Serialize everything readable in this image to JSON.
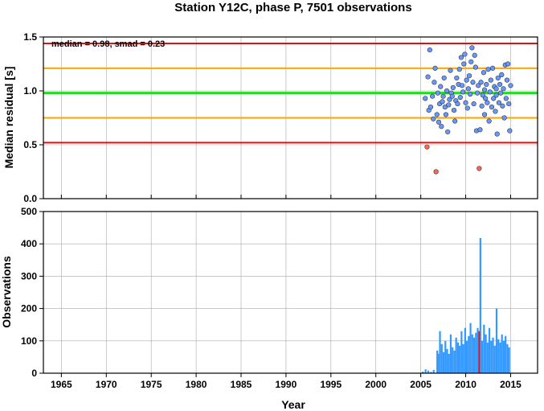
{
  "chart_data": [
    {
      "type": "scatter",
      "title": "Station Y12C, phase P, 7501 observations",
      "ylabel": "Median residual [s]",
      "annotation": "median = 0.98, smad = 0.23",
      "xlim": [
        1963,
        2018
      ],
      "ylim": [
        0.0,
        1.5
      ],
      "yticks": [
        "0.0",
        "0.5",
        "1.0",
        "1.5"
      ],
      "grid": true,
      "reference_lines": [
        {
          "name": "median",
          "value": 0.98,
          "color": "#22dd22"
        },
        {
          "name": "median - 1 smad",
          "value": 0.75,
          "color": "#ffa500"
        },
        {
          "name": "median + 1 smad",
          "value": 1.21,
          "color": "#ffa500"
        },
        {
          "name": "median - 2 smad",
          "value": 0.52,
          "color": "#dd1111"
        },
        {
          "name": "median + 2 smad",
          "value": 1.44,
          "color": "#dd1111"
        }
      ],
      "point_color_inlier": "#6699ff",
      "point_color_outlier": "#ff6655",
      "points": [
        [
          2005.5,
          0.93
        ],
        [
          2005.7,
          0.48
        ],
        [
          2005.8,
          1.13
        ],
        [
          2005.9,
          0.82
        ],
        [
          2006.0,
          1.38
        ],
        [
          2006.1,
          0.85
        ],
        [
          2006.3,
          0.95
        ],
        [
          2006.4,
          0.74
        ],
        [
          2006.5,
          1.08
        ],
        [
          2006.6,
          1.21
        ],
        [
          2006.7,
          0.25
        ],
        [
          2006.8,
          0.78
        ],
        [
          2006.9,
          0.98
        ],
        [
          2007.0,
          0.71
        ],
        [
          2007.1,
          0.88
        ],
        [
          2007.2,
          1.04
        ],
        [
          2007.3,
          0.67
        ],
        [
          2007.4,
          0.9
        ],
        [
          2007.5,
          0.95
        ],
        [
          2007.6,
          1.12
        ],
        [
          2007.7,
          0.85
        ],
        [
          2007.8,
          0.78
        ],
        [
          2007.9,
          1.0
        ],
        [
          2008.0,
          0.62
        ],
        [
          2008.1,
          0.87
        ],
        [
          2008.2,
          0.92
        ],
        [
          2008.3,
          1.19
        ],
        [
          2008.4,
          0.98
        ],
        [
          2008.5,
          0.95
        ],
        [
          2008.6,
          1.03
        ],
        [
          2008.7,
          0.82
        ],
        [
          2008.8,
          0.72
        ],
        [
          2008.9,
          0.91
        ],
        [
          2009.0,
          1.12
        ],
        [
          2009.1,
          0.88
        ],
        [
          2009.2,
          1.06
        ],
        [
          2009.3,
          1.2
        ],
        [
          2009.4,
          0.94
        ],
        [
          2009.5,
          1.31
        ],
        [
          2009.6,
          1.05
        ],
        [
          2009.7,
          0.99
        ],
        [
          2009.8,
          1.25
        ],
        [
          2009.9,
          1.34
        ],
        [
          2010.0,
          0.89
        ],
        [
          2010.1,
          1.1
        ],
        [
          2010.2,
          0.84
        ],
        [
          2010.3,
          1.02
        ],
        [
          2010.4,
          1.14
        ],
        [
          2010.5,
          0.97
        ],
        [
          2010.6,
          1.27
        ],
        [
          2010.7,
          1.4
        ],
        [
          2010.8,
          1.08
        ],
        [
          2010.9,
          0.88
        ],
        [
          2011.0,
          1.33
        ],
        [
          2011.1,
          1.22
        ],
        [
          2011.2,
          0.63
        ],
        [
          2011.3,
          0.98
        ],
        [
          2011.4,
          1.05
        ],
        [
          2011.5,
          0.28
        ],
        [
          2011.6,
          0.64
        ],
        [
          2011.7,
          1.08
        ],
        [
          2011.8,
          0.86
        ],
        [
          2011.9,
          0.96
        ],
        [
          2012.0,
          1.17
        ],
        [
          2012.1,
          0.78
        ],
        [
          2012.2,
          0.93
        ],
        [
          2012.3,
          1.06
        ],
        [
          2012.4,
          0.89
        ],
        [
          2012.5,
          1.2
        ],
        [
          2012.6,
          0.72
        ],
        [
          2012.7,
          0.99
        ],
        [
          2012.8,
          1.1
        ],
        [
          2012.9,
          0.85
        ],
        [
          2013.0,
          1.21
        ],
        [
          2013.1,
          0.93
        ],
        [
          2013.2,
          1.04
        ],
        [
          2013.3,
          0.81
        ],
        [
          2013.4,
          0.96
        ],
        [
          2013.5,
          0.6
        ],
        [
          2013.6,
          1.12
        ],
        [
          2013.7,
          0.89
        ],
        [
          2013.8,
          1.06
        ],
        [
          2013.9,
          0.98
        ],
        [
          2014.0,
          1.15
        ],
        [
          2014.1,
          0.86
        ],
        [
          2014.2,
          1.02
        ],
        [
          2014.3,
          0.75
        ],
        [
          2014.4,
          1.24
        ],
        [
          2014.5,
          0.93
        ],
        [
          2014.6,
          1.1
        ],
        [
          2014.7,
          1.25
        ],
        [
          2014.8,
          0.88
        ],
        [
          2014.9,
          0.63
        ],
        [
          2015.0,
          1.05
        ],
        [
          2013.4,
          1.02
        ],
        [
          2012.1,
          1.01
        ]
      ]
    },
    {
      "type": "bar",
      "xlabel": "Year",
      "ylabel": "Observations",
      "xlim": [
        1963,
        2018
      ],
      "ylim": [
        0,
        500
      ],
      "yticks": [
        "0",
        "100",
        "200",
        "300",
        "400",
        "500"
      ],
      "xticks": [
        "1965",
        "1970",
        "1975",
        "1980",
        "1985",
        "1990",
        "1995",
        "2000",
        "2005",
        "2010",
        "2015"
      ],
      "grid": true,
      "bar_color": "#3399ff",
      "highlight_color": "#dd1111",
      "bars": [
        [
          2005.3,
          5
        ],
        [
          2005.6,
          12
        ],
        [
          2005.9,
          8
        ],
        [
          2006.2,
          4
        ],
        [
          2006.5,
          10
        ],
        [
          2006.9,
          70
        ],
        [
          2007.0,
          60
        ],
        [
          2007.2,
          130
        ],
        [
          2007.4,
          90
        ],
        [
          2007.6,
          65
        ],
        [
          2007.8,
          100
        ],
        [
          2008.0,
          75
        ],
        [
          2008.2,
          60
        ],
        [
          2008.4,
          120
        ],
        [
          2008.6,
          80
        ],
        [
          2008.8,
          70
        ],
        [
          2009.0,
          110
        ],
        [
          2009.2,
          95
        ],
        [
          2009.4,
          85
        ],
        [
          2009.6,
          130
        ],
        [
          2009.8,
          90
        ],
        [
          2010.0,
          140
        ],
        [
          2010.2,
          100
        ],
        [
          2010.4,
          115
        ],
        [
          2010.6,
          155
        ],
        [
          2010.8,
          120
        ],
        [
          2011.0,
          110
        ],
        [
          2011.2,
          125
        ],
        [
          2011.4,
          140
        ],
        [
          2011.6,
          130
        ],
        [
          2011.7,
          418
        ],
        [
          2011.9,
          100
        ],
        [
          2012.1,
          150
        ],
        [
          2012.3,
          120
        ],
        [
          2012.5,
          95
        ],
        [
          2012.7,
          140
        ],
        [
          2012.9,
          100
        ],
        [
          2013.1,
          110
        ],
        [
          2013.3,
          85
        ],
        [
          2013.5,
          200
        ],
        [
          2013.7,
          105
        ],
        [
          2013.9,
          95
        ],
        [
          2014.1,
          120
        ],
        [
          2014.3,
          100
        ],
        [
          2014.5,
          115
        ],
        [
          2014.7,
          90
        ],
        [
          2014.9,
          80
        ]
      ],
      "highlight": [
        [
          2011.5,
          130
        ]
      ]
    }
  ]
}
